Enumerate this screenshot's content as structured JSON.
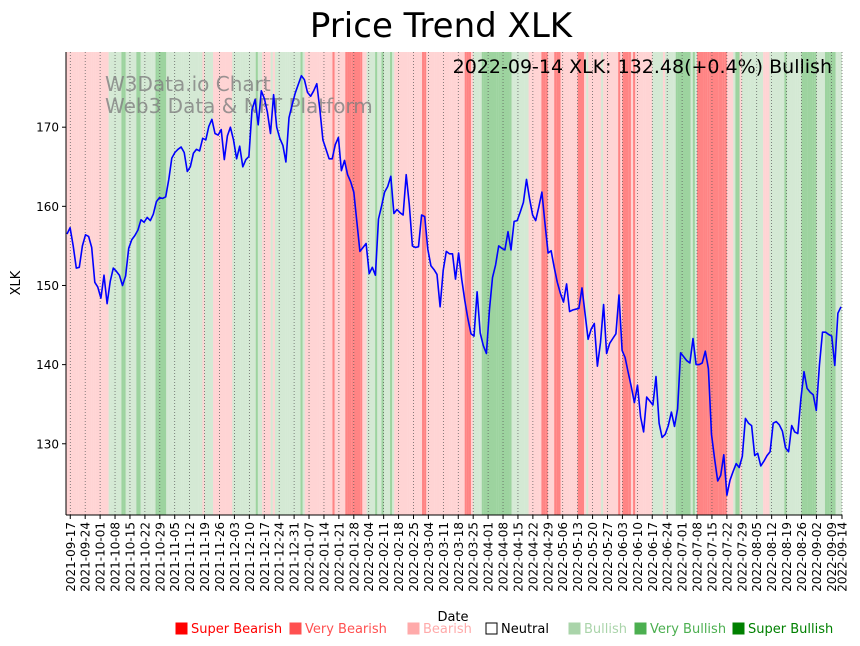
{
  "chart_data": {
    "type": "line",
    "title": "Price Trend XLK",
    "xlabel": "Date",
    "ylabel": "XLK",
    "annotation": "2022-09-14 XLK: 132.48(+0.4%) Bullish",
    "watermark": [
      "W3Data.io Chart",
      "Web3 Data & NFT Platform"
    ],
    "ylim": [
      121,
      179.5
    ],
    "yticks": [
      130,
      140,
      150,
      160,
      170
    ],
    "xlim": [
      "2021-09-15",
      "2022-09-14"
    ],
    "xtick_labels": [
      "2021-09-17",
      "2021-09-24",
      "2021-10-01",
      "2021-10-08",
      "2021-10-15",
      "2021-10-22",
      "2021-10-29",
      "2021-11-05",
      "2021-11-12",
      "2021-11-19",
      "2021-11-26",
      "2021-12-03",
      "2021-12-10",
      "2021-12-17",
      "2021-12-24",
      "2021-12-31",
      "2022-01-07",
      "2022-01-14",
      "2022-01-21",
      "2022-01-28",
      "2022-02-04",
      "2022-02-11",
      "2022-02-18",
      "2022-02-25",
      "2022-03-04",
      "2022-03-11",
      "2022-03-18",
      "2022-03-25",
      "2022-04-01",
      "2022-04-08",
      "2022-04-15",
      "2022-04-22",
      "2022-04-29",
      "2022-05-06",
      "2022-05-13",
      "2022-05-20",
      "2022-05-27",
      "2022-06-03",
      "2022-06-10",
      "2022-06-17",
      "2022-06-24",
      "2022-07-01",
      "2022-07-08",
      "2022-07-15",
      "2022-07-22",
      "2022-07-29",
      "2022-08-05",
      "2022-08-12",
      "2022-08-19",
      "2022-08-26",
      "2022-09-02",
      "2022-09-09",
      "2022-09-14"
    ],
    "grid": "vertical dotted at each weekly tick",
    "series": [
      {
        "color": "#0000ff",
        "points": [
          [
            "2021-09-15",
            156.5
          ],
          [
            "2021-09-16",
            157.3
          ],
          [
            "2021-09-17",
            155.0
          ],
          [
            "2021-09-20",
            152.2
          ],
          [
            "2021-09-21",
            152.3
          ],
          [
            "2021-09-22",
            155.0
          ],
          [
            "2021-09-23",
            156.4
          ],
          [
            "2021-09-24",
            156.2
          ],
          [
            "2021-09-27",
            154.8
          ],
          [
            "2021-09-28",
            150.4
          ],
          [
            "2021-09-29",
            149.8
          ],
          [
            "2021-09-30",
            148.4
          ],
          [
            "2021-10-01",
            151.3
          ],
          [
            "2021-10-04",
            147.7
          ],
          [
            "2021-10-05",
            150.5
          ],
          [
            "2021-10-06",
            152.2
          ],
          [
            "2021-10-07",
            151.8
          ],
          [
            "2021-10-08",
            151.3
          ],
          [
            "2021-10-11",
            150.0
          ],
          [
            "2021-10-12",
            151.2
          ],
          [
            "2021-10-13",
            154.7
          ],
          [
            "2021-10-14",
            155.8
          ],
          [
            "2021-10-15",
            156.3
          ],
          [
            "2021-10-18",
            157.0
          ],
          [
            "2021-10-19",
            158.3
          ],
          [
            "2021-10-20",
            158.0
          ],
          [
            "2021-10-21",
            158.6
          ],
          [
            "2021-10-22",
            158.2
          ],
          [
            "2021-10-25",
            159.0
          ],
          [
            "2021-10-26",
            160.6
          ],
          [
            "2021-10-27",
            161.1
          ],
          [
            "2021-10-28",
            161.0
          ],
          [
            "2021-10-29",
            161.2
          ],
          [
            "2021-11-01",
            163.4
          ],
          [
            "2021-11-02",
            166.1
          ],
          [
            "2021-11-03",
            166.8
          ],
          [
            "2021-11-04",
            167.2
          ],
          [
            "2021-11-05",
            167.5
          ],
          [
            "2021-11-08",
            166.8
          ],
          [
            "2021-11-09",
            164.4
          ],
          [
            "2021-11-10",
            165.0
          ],
          [
            "2021-11-11",
            166.7
          ],
          [
            "2021-11-12",
            167.2
          ],
          [
            "2021-11-15",
            167.0
          ],
          [
            "2021-11-16",
            168.6
          ],
          [
            "2021-11-17",
            168.4
          ],
          [
            "2021-11-18",
            170.1
          ],
          [
            "2021-11-19",
            171.0
          ],
          [
            "2021-11-22",
            169.2
          ],
          [
            "2021-11-23",
            169.0
          ],
          [
            "2021-11-24",
            169.7
          ],
          [
            "2021-11-26",
            165.9
          ],
          [
            "2021-11-29",
            168.9
          ],
          [
            "2021-11-30",
            170.0
          ],
          [
            "2021-12-01",
            168.4
          ],
          [
            "2021-12-02",
            166.0
          ],
          [
            "2021-12-03",
            167.6
          ],
          [
            "2021-12-06",
            165.0
          ],
          [
            "2021-12-07",
            165.9
          ],
          [
            "2021-12-08",
            166.3
          ],
          [
            "2021-12-09",
            172.2
          ],
          [
            "2021-12-10",
            173.5
          ],
          [
            "2021-12-13",
            170.3
          ],
          [
            "2021-12-14",
            174.6
          ],
          [
            "2021-12-15",
            173.6
          ],
          [
            "2021-12-16",
            171.9
          ],
          [
            "2021-12-17",
            169.2
          ],
          [
            "2021-12-20",
            174.1
          ],
          [
            "2021-12-21",
            170.0
          ],
          [
            "2021-12-22",
            168.6
          ],
          [
            "2021-12-23",
            167.7
          ],
          [
            "2021-12-27",
            165.6
          ],
          [
            "2021-12-28",
            171.2
          ],
          [
            "2021-12-29",
            172.8
          ],
          [
            "2021-12-30",
            174.3
          ],
          [
            "2021-12-31",
            175.4
          ],
          [
            "2022-01-03",
            176.5
          ],
          [
            "2022-01-04",
            176.0
          ],
          [
            "2022-01-05",
            174.4
          ],
          [
            "2022-01-06",
            173.9
          ],
          [
            "2022-01-07",
            174.6
          ],
          [
            "2022-01-10",
            175.5
          ],
          [
            "2022-01-11",
            172.2
          ],
          [
            "2022-01-12",
            168.4
          ],
          [
            "2022-01-13",
            167.2
          ],
          [
            "2022-01-14",
            166.0
          ],
          [
            "2022-01-18",
            166.0
          ],
          [
            "2022-01-19",
            167.8
          ],
          [
            "2022-01-20",
            168.7
          ],
          [
            "2022-01-21",
            164.5
          ],
          [
            "2022-01-24",
            165.8
          ],
          [
            "2022-01-25",
            164.0
          ],
          [
            "2022-01-26",
            163.1
          ],
          [
            "2022-01-27",
            161.8
          ],
          [
            "2022-01-28",
            158.0
          ],
          [
            "2022-01-31",
            154.3
          ],
          [
            "2022-02-01",
            154.8
          ],
          [
            "2022-02-02",
            155.3
          ],
          [
            "2022-02-03",
            151.5
          ],
          [
            "2022-02-04",
            152.3
          ],
          [
            "2022-02-07",
            151.3
          ],
          [
            "2022-02-08",
            158.4
          ],
          [
            "2022-02-09",
            160.0
          ],
          [
            "2022-02-10",
            161.8
          ],
          [
            "2022-02-11",
            162.5
          ],
          [
            "2022-02-14",
            163.8
          ],
          [
            "2022-02-15",
            159.1
          ],
          [
            "2022-02-16",
            159.6
          ],
          [
            "2022-02-17",
            159.2
          ],
          [
            "2022-02-18",
            158.9
          ],
          [
            "2022-02-22",
            164.0
          ],
          [
            "2022-02-23",
            160.2
          ],
          [
            "2022-02-24",
            155.0
          ],
          [
            "2022-02-25",
            154.8
          ],
          [
            "2022-02-28",
            154.9
          ],
          [
            "2022-03-01",
            158.9
          ],
          [
            "2022-03-02",
            158.7
          ],
          [
            "2022-03-03",
            154.6
          ],
          [
            "2022-03-04",
            152.5
          ],
          [
            "2022-03-07",
            152.0
          ],
          [
            "2022-03-08",
            151.4
          ],
          [
            "2022-03-09",
            147.3
          ],
          [
            "2022-03-10",
            151.9
          ],
          [
            "2022-03-11",
            154.3
          ],
          [
            "2022-03-14",
            154.0
          ],
          [
            "2022-03-15",
            154.0
          ],
          [
            "2022-03-16",
            150.8
          ],
          [
            "2022-03-17",
            154.1
          ],
          [
            "2022-03-18",
            150.8
          ],
          [
            "2022-03-21",
            148.1
          ],
          [
            "2022-03-22",
            145.8
          ],
          [
            "2022-03-23",
            143.9
          ],
          [
            "2022-03-24",
            143.6
          ],
          [
            "2022-03-25",
            149.2
          ],
          [
            "2022-03-28",
            144.0
          ],
          [
            "2022-03-29",
            142.4
          ],
          [
            "2022-03-30",
            141.4
          ],
          [
            "2022-03-31",
            147.0
          ],
          [
            "2022-04-01",
            151.0
          ],
          [
            "2022-04-04",
            152.6
          ],
          [
            "2022-04-05",
            155.0
          ],
          [
            "2022-04-06",
            154.7
          ],
          [
            "2022-04-07",
            154.5
          ],
          [
            "2022-04-08",
            156.8
          ],
          [
            "2022-04-11",
            154.5
          ],
          [
            "2022-04-12",
            158.1
          ],
          [
            "2022-04-13",
            158.2
          ],
          [
            "2022-04-14",
            159.3
          ],
          [
            "2022-04-18",
            160.5
          ],
          [
            "2022-04-19",
            163.4
          ],
          [
            "2022-04-20",
            161.0
          ],
          [
            "2022-04-21",
            158.9
          ],
          [
            "2022-04-22",
            158.2
          ],
          [
            "2022-04-25",
            159.9
          ],
          [
            "2022-04-26",
            161.8
          ],
          [
            "2022-04-27",
            157.8
          ],
          [
            "2022-04-28",
            154.1
          ],
          [
            "2022-04-29",
            154.4
          ],
          [
            "2022-05-02",
            152.3
          ],
          [
            "2022-05-03",
            150.4
          ],
          [
            "2022-05-04",
            149.0
          ],
          [
            "2022-05-05",
            147.9
          ],
          [
            "2022-05-06",
            150.2
          ],
          [
            "2022-05-09",
            146.7
          ],
          [
            "2022-05-10",
            146.9
          ],
          [
            "2022-05-11",
            147.0
          ],
          [
            "2022-05-12",
            147.1
          ],
          [
            "2022-05-13",
            149.7
          ],
          [
            "2022-05-16",
            146.4
          ],
          [
            "2022-05-17",
            143.2
          ],
          [
            "2022-05-18",
            144.5
          ],
          [
            "2022-05-19",
            145.2
          ],
          [
            "2022-05-20",
            139.8
          ],
          [
            "2022-05-23",
            142.8
          ],
          [
            "2022-05-24",
            147.6
          ],
          [
            "2022-05-25",
            141.4
          ],
          [
            "2022-05-26",
            142.7
          ],
          [
            "2022-05-27",
            143.3
          ],
          [
            "2022-05-31",
            143.9
          ],
          [
            "2022-06-01",
            148.8
          ],
          [
            "2022-06-02",
            141.8
          ],
          [
            "2022-06-03",
            140.9
          ],
          [
            "2022-06-06",
            139.0
          ],
          [
            "2022-06-07",
            137.2
          ],
          [
            "2022-06-08",
            135.2
          ],
          [
            "2022-06-09",
            137.4
          ],
          [
            "2022-06-10",
            133.4
          ],
          [
            "2022-06-13",
            131.5
          ],
          [
            "2022-06-14",
            135.9
          ],
          [
            "2022-06-15",
            135.4
          ],
          [
            "2022-06-16",
            134.9
          ],
          [
            "2022-06-17",
            138.5
          ],
          [
            "2022-06-21",
            132.6
          ],
          [
            "2022-06-22",
            130.8
          ],
          [
            "2022-06-23",
            131.2
          ],
          [
            "2022-06-24",
            132.3
          ],
          [
            "2022-06-27",
            134.0
          ],
          [
            "2022-06-28",
            132.2
          ],
          [
            "2022-06-29",
            134.4
          ],
          [
            "2022-06-30",
            141.5
          ],
          [
            "2022-07-01",
            141.0
          ],
          [
            "2022-07-05",
            140.5
          ],
          [
            "2022-07-06",
            140.2
          ],
          [
            "2022-07-07",
            143.3
          ],
          [
            "2022-07-08",
            140.0
          ],
          [
            "2022-07-11",
            140.0
          ],
          [
            "2022-07-12",
            140.2
          ],
          [
            "2022-07-13",
            141.7
          ],
          [
            "2022-07-14",
            139.5
          ],
          [
            "2022-07-15",
            131.2
          ],
          [
            "2022-07-18",
            128.1
          ],
          [
            "2022-07-19",
            125.3
          ],
          [
            "2022-07-20",
            126.0
          ],
          [
            "2022-07-21",
            128.6
          ],
          [
            "2022-07-22",
            123.5
          ],
          [
            "2022-07-25",
            125.4
          ],
          [
            "2022-07-26",
            126.5
          ],
          [
            "2022-07-27",
            127.5
          ],
          [
            "2022-07-28",
            127.0
          ],
          [
            "2022-07-29",
            128.4
          ],
          [
            "2022-08-01",
            133.2
          ],
          [
            "2022-08-02",
            132.6
          ],
          [
            "2022-08-03",
            132.3
          ],
          [
            "2022-08-04",
            128.5
          ],
          [
            "2022-08-05",
            128.8
          ],
          [
            "2022-08-08",
            127.2
          ],
          [
            "2022-08-09",
            127.8
          ],
          [
            "2022-08-10",
            128.5
          ],
          [
            "2022-08-11",
            129.0
          ],
          [
            "2022-08-12",
            132.6
          ],
          [
            "2022-08-15",
            132.8
          ],
          [
            "2022-08-16",
            132.4
          ],
          [
            "2022-08-17",
            131.6
          ],
          [
            "2022-08-18",
            129.5
          ],
          [
            "2022-08-19",
            129.0
          ],
          [
            "2022-08-22",
            132.3
          ],
          [
            "2022-08-23",
            131.5
          ],
          [
            "2022-08-24",
            131.3
          ],
          [
            "2022-08-25",
            135.7
          ],
          [
            "2022-08-26",
            139.1
          ],
          [
            "2022-08-29",
            137.0
          ],
          [
            "2022-08-30",
            136.5
          ],
          [
            "2022-08-31",
            136.2
          ],
          [
            "2022-09-01",
            134.2
          ],
          [
            "2022-09-02",
            139.9
          ],
          [
            "2022-09-06",
            144.1
          ],
          [
            "2022-09-07",
            144.1
          ],
          [
            "2022-09-08",
            143.8
          ],
          [
            "2022-09-09",
            143.6
          ],
          [
            "2022-09-10",
            139.9
          ],
          [
            "2022-09-11",
            146.5
          ],
          [
            "2022-09-12",
            147.3
          ]
        ]
      }
    ],
    "legend": [
      {
        "label": "Super Bearish",
        "color": "#ff0000",
        "text_color": "#ff0000"
      },
      {
        "label": "Very Bearish",
        "color": "#ff5050",
        "text_color": "#ff5050"
      },
      {
        "label": "Bearish",
        "color": "#ffaaaa",
        "text_color": "#ffaaaa"
      },
      {
        "label": "Neutral",
        "color": "#ffffff",
        "text_color": "#000000"
      },
      {
        "label": "Bullish",
        "color": "#aad4aa",
        "text_color": "#aad4aa"
      },
      {
        "label": "Very Bullish",
        "color": "#4caf50",
        "text_color": "#4caf50"
      },
      {
        "label": "Super Bullish",
        "color": "#008000",
        "text_color": "#008000"
      }
    ],
    "legend_placement": "bottom-right"
  }
}
